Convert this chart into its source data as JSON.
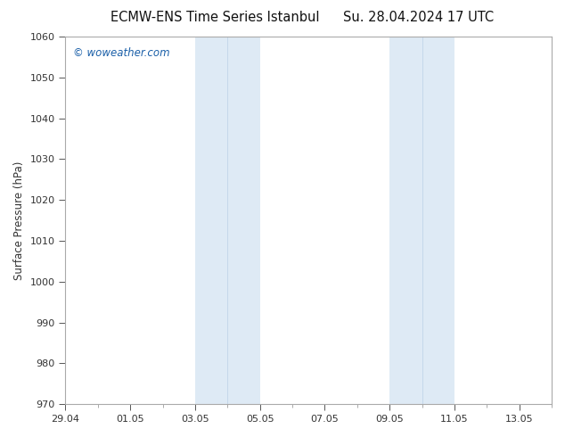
{
  "title_left": "ECMW-ENS Time Series Istanbul",
  "title_right": "Su. 28.04.2024 17 UTC",
  "ylabel": "Surface Pressure (hPa)",
  "ylim": [
    970,
    1060
  ],
  "yticks": [
    970,
    980,
    990,
    1000,
    1010,
    1020,
    1030,
    1040,
    1050,
    1060
  ],
  "xlim": [
    0,
    15
  ],
  "xtick_labels": [
    "29.04",
    "01.05",
    "03.05",
    "05.05",
    "07.05",
    "09.05",
    "11.05",
    "13.05"
  ],
  "xtick_positions": [
    0,
    2,
    4,
    6,
    8,
    10,
    12,
    14
  ],
  "shaded_bands": [
    {
      "xstart": 4,
      "xend": 5
    },
    {
      "xstart": 5,
      "xend": 6
    },
    {
      "xstart": 10,
      "xend": 11
    },
    {
      "xstart": 11,
      "xend": 12
    }
  ],
  "band_color": "#deeaf5",
  "background_color": "#ffffff",
  "plot_bg_color": "#ffffff",
  "watermark_text": "© woweather.com",
  "watermark_color": "#1a5fa8",
  "watermark_fontsize": 8.5,
  "title_fontsize": 10.5,
  "axis_label_fontsize": 8.5,
  "tick_fontsize": 8,
  "spine_color": "#aaaaaa",
  "tick_color": "#333333",
  "minor_tick_interval": 1,
  "grid_color": "#e0e0e0"
}
